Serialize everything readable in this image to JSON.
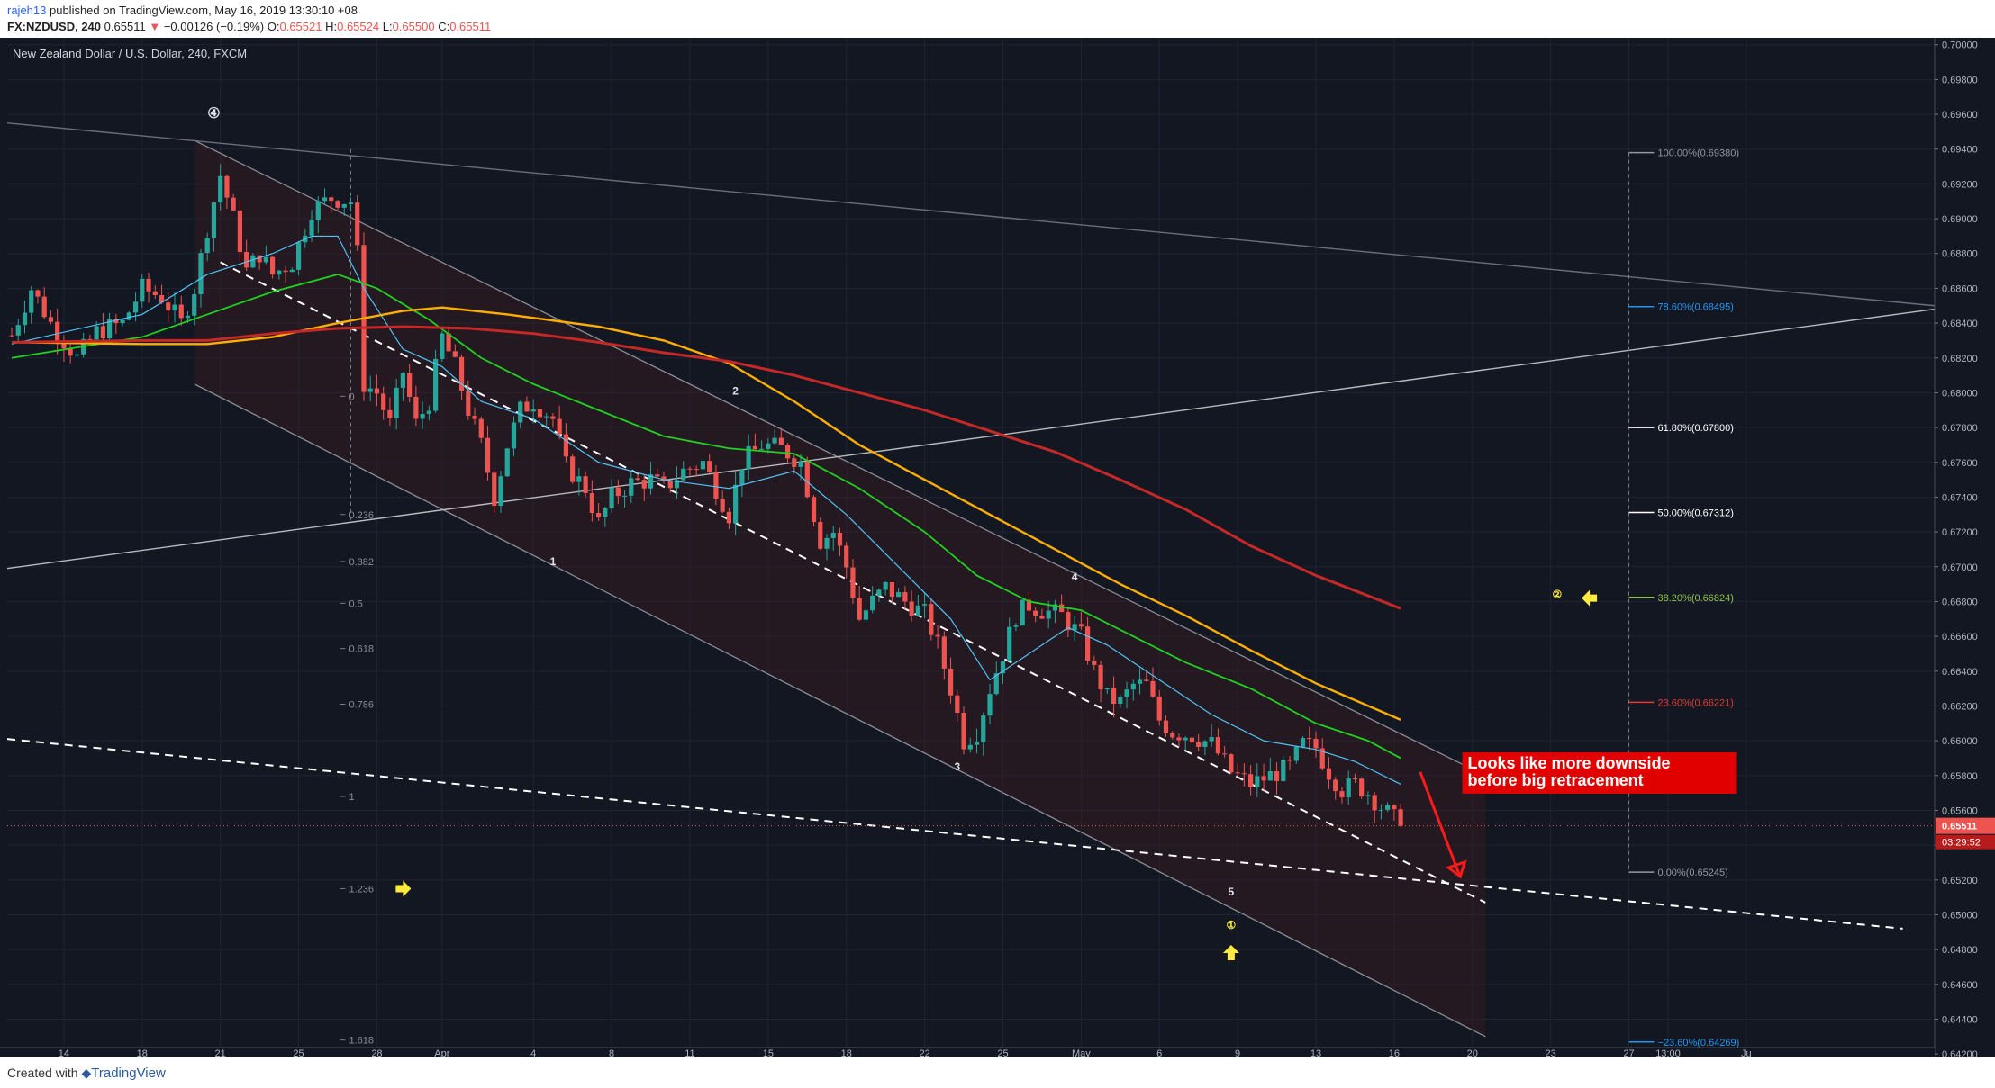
{
  "header": {
    "publisher": "rajeh13",
    "published_text": " published on TradingView.com, May 16, 2019 13:30:10 +08",
    "symbol_text": "FX:NZDUSD, 240",
    "price": "0.65511",
    "change_arrow": "▼",
    "change": "−0.00126 (−0.19%)",
    "o_label": "O:",
    "o": "0.65521",
    "h_label": "H:",
    "h": "0.65524",
    "l_label": "L:",
    "l": "0.65500",
    "c_label": "C:",
    "c": "0.65511"
  },
  "footer": {
    "created": "Created with",
    "brand": "TradingView"
  },
  "colors": {
    "background": "#131722",
    "up": "#26a69a",
    "down": "#ef5350",
    "ma_fast": "#4fc3f7",
    "ma_mid": "#1ed21e",
    "ma_orange": "#ffae00",
    "ma_red": "#c62828"
  },
  "chart_data": {
    "type": "candlestick",
    "title": "New Zealand Dollar / U.S. Dollar, 240, FXCM",
    "ylim": [
      0.6418,
      0.7004
    ],
    "y_ticks": [
      "0.70000",
      "0.69800",
      "0.69600",
      "0.69400",
      "0.69200",
      "0.69000",
      "0.68800",
      "0.68600",
      "0.68400",
      "0.68200",
      "0.68000",
      "0.67800",
      "0.67600",
      "0.67400",
      "0.67200",
      "0.67000",
      "0.66800",
      "0.66600",
      "0.66400",
      "0.66200",
      "0.66000",
      "0.65800",
      "0.65600",
      "0.65400",
      "0.65200",
      "0.65000",
      "0.64800",
      "0.64600",
      "0.64400",
      "0.64200"
    ],
    "x_ticks": [
      {
        "label": "14",
        "bar": 8
      },
      {
        "label": "18",
        "bar": 20
      },
      {
        "label": "21",
        "bar": 32
      },
      {
        "label": "25",
        "bar": 44
      },
      {
        "label": "28",
        "bar": 56
      },
      {
        "label": "Apr",
        "bar": 66
      },
      {
        "label": "4",
        "bar": 80
      },
      {
        "label": "8",
        "bar": 92
      },
      {
        "label": "11",
        "bar": 104
      },
      {
        "label": "15",
        "bar": 116
      },
      {
        "label": "18",
        "bar": 128
      },
      {
        "label": "22",
        "bar": 140
      },
      {
        "label": "25",
        "bar": 152
      },
      {
        "label": "May",
        "bar": 164
      },
      {
        "label": "6",
        "bar": 176
      },
      {
        "label": "9",
        "bar": 188
      },
      {
        "label": "13",
        "bar": 200
      },
      {
        "label": "16",
        "bar": 212
      },
      {
        "label": "20",
        "bar": 224
      },
      {
        "label": "23",
        "bar": 236
      },
      {
        "label": "27",
        "bar": 248
      },
      {
        "label": "13:00",
        "bar": 254
      },
      {
        "label": "Ju",
        "bar": 266
      }
    ],
    "close_path": [
      [
        0,
        0.6833
      ],
      [
        3,
        0.686
      ],
      [
        6,
        0.684
      ],
      [
        10,
        0.682
      ],
      [
        13,
        0.6835
      ],
      [
        17,
        0.684
      ],
      [
        20,
        0.686
      ],
      [
        23,
        0.6855
      ],
      [
        26,
        0.684
      ],
      [
        28,
        0.686
      ],
      [
        30,
        0.6895
      ],
      [
        32,
        0.6925
      ],
      [
        34,
        0.69
      ],
      [
        36,
        0.687
      ],
      [
        38,
        0.688
      ],
      [
        40,
        0.6868
      ],
      [
        43,
        0.6875
      ],
      [
        46,
        0.6905
      ],
      [
        49,
        0.6912
      ],
      [
        52,
        0.691
      ],
      [
        53,
        0.688
      ],
      [
        54,
        0.6805
      ],
      [
        56,
        0.68
      ],
      [
        58,
        0.6782
      ],
      [
        60,
        0.6812
      ],
      [
        62,
        0.6782
      ],
      [
        64,
        0.6795
      ],
      [
        66,
        0.6832
      ],
      [
        68,
        0.6815
      ],
      [
        70,
        0.679
      ],
      [
        72,
        0.677
      ],
      [
        74,
        0.674
      ],
      [
        76,
        0.677
      ],
      [
        78,
        0.679
      ],
      [
        80,
        0.6795
      ],
      [
        83,
        0.6785
      ],
      [
        85,
        0.6758
      ],
      [
        88,
        0.6745
      ],
      [
        90,
        0.6725
      ],
      [
        92,
        0.674
      ],
      [
        95,
        0.6748
      ],
      [
        98,
        0.675
      ],
      [
        100,
        0.6745
      ],
      [
        103,
        0.6755
      ],
      [
        106,
        0.676
      ],
      [
        108,
        0.6745
      ],
      [
        110,
        0.673
      ],
      [
        112,
        0.676
      ],
      [
        115,
        0.677
      ],
      [
        118,
        0.6768
      ],
      [
        121,
        0.676
      ],
      [
        124,
        0.6715
      ],
      [
        126,
        0.672
      ],
      [
        128,
        0.67
      ],
      [
        130,
        0.667
      ],
      [
        132,
        0.668
      ],
      [
        134,
        0.6688
      ],
      [
        137,
        0.668
      ],
      [
        140,
        0.6673
      ],
      [
        142,
        0.6655
      ],
      [
        144,
        0.663
      ],
      [
        146,
        0.66
      ],
      [
        148,
        0.6605
      ],
      [
        150,
        0.663
      ],
      [
        152,
        0.665
      ],
      [
        154,
        0.6672
      ],
      [
        156,
        0.6678
      ],
      [
        158,
        0.6675
      ],
      [
        161,
        0.6672
      ],
      [
        164,
        0.666
      ],
      [
        166,
        0.664
      ],
      [
        168,
        0.6625
      ],
      [
        170,
        0.6622
      ],
      [
        172,
        0.6632
      ],
      [
        174,
        0.6632
      ],
      [
        176,
        0.6612
      ],
      [
        178,
        0.6605
      ],
      [
        181,
        0.6603
      ],
      [
        184,
        0.6598
      ],
      [
        187,
        0.6582
      ],
      [
        190,
        0.6575
      ],
      [
        193,
        0.658
      ],
      [
        196,
        0.6585
      ],
      [
        198,
        0.6598
      ],
      [
        200,
        0.6596
      ],
      [
        202,
        0.6582
      ],
      [
        204,
        0.6572
      ],
      [
        206,
        0.6575
      ],
      [
        208,
        0.657
      ],
      [
        210,
        0.6562
      ],
      [
        212,
        0.6555
      ],
      [
        213,
        0.6551
      ]
    ],
    "moving_averages": [
      {
        "color": "ma_fast",
        "points": [
          [
            0,
            0.6828
          ],
          [
            20,
            0.6845
          ],
          [
            30,
            0.6868
          ],
          [
            40,
            0.688
          ],
          [
            46,
            0.689
          ],
          [
            50,
            0.689
          ],
          [
            54,
            0.686
          ],
          [
            60,
            0.6825
          ],
          [
            66,
            0.6815
          ],
          [
            72,
            0.6795
          ],
          [
            80,
            0.6785
          ],
          [
            90,
            0.676
          ],
          [
            100,
            0.675
          ],
          [
            110,
            0.6745
          ],
          [
            120,
            0.6755
          ],
          [
            128,
            0.673
          ],
          [
            136,
            0.67
          ],
          [
            144,
            0.667
          ],
          [
            150,
            0.6635
          ],
          [
            156,
            0.665
          ],
          [
            162,
            0.6665
          ],
          [
            168,
            0.6655
          ],
          [
            176,
            0.6635
          ],
          [
            184,
            0.6615
          ],
          [
            192,
            0.66
          ],
          [
            200,
            0.6595
          ],
          [
            206,
            0.6588
          ],
          [
            213,
            0.6575
          ]
        ]
      },
      {
        "color": "ma_mid",
        "points": [
          [
            0,
            0.682
          ],
          [
            20,
            0.6832
          ],
          [
            30,
            0.6845
          ],
          [
            40,
            0.6858
          ],
          [
            50,
            0.6868
          ],
          [
            56,
            0.686
          ],
          [
            64,
            0.6842
          ],
          [
            72,
            0.682
          ],
          [
            80,
            0.6805
          ],
          [
            90,
            0.679
          ],
          [
            100,
            0.6775
          ],
          [
            110,
            0.6768
          ],
          [
            120,
            0.6765
          ],
          [
            130,
            0.6745
          ],
          [
            140,
            0.672
          ],
          [
            148,
            0.6695
          ],
          [
            156,
            0.668
          ],
          [
            164,
            0.6675
          ],
          [
            172,
            0.666
          ],
          [
            180,
            0.6645
          ],
          [
            190,
            0.663
          ],
          [
            200,
            0.661
          ],
          [
            208,
            0.66
          ],
          [
            213,
            0.659
          ]
        ]
      },
      {
        "color": "ma_orange",
        "points": [
          [
            0,
            0.6829
          ],
          [
            20,
            0.6828
          ],
          [
            30,
            0.6828
          ],
          [
            40,
            0.6832
          ],
          [
            50,
            0.684
          ],
          [
            60,
            0.6847
          ],
          [
            66,
            0.6849
          ],
          [
            76,
            0.6845
          ],
          [
            90,
            0.6838
          ],
          [
            100,
            0.683
          ],
          [
            110,
            0.6817
          ],
          [
            120,
            0.6795
          ],
          [
            130,
            0.677
          ],
          [
            140,
            0.675
          ],
          [
            150,
            0.673
          ],
          [
            160,
            0.671
          ],
          [
            170,
            0.669
          ],
          [
            180,
            0.6672
          ],
          [
            190,
            0.6652
          ],
          [
            200,
            0.6633
          ],
          [
            213,
            0.6612
          ]
        ]
      },
      {
        "color": "ma_red",
        "points": [
          [
            0,
            0.6829
          ],
          [
            20,
            0.683
          ],
          [
            30,
            0.683
          ],
          [
            40,
            0.6834
          ],
          [
            50,
            0.6837
          ],
          [
            60,
            0.6838
          ],
          [
            70,
            0.6837
          ],
          [
            80,
            0.6834
          ],
          [
            90,
            0.6829
          ],
          [
            100,
            0.6823
          ],
          [
            110,
            0.6818
          ],
          [
            120,
            0.681
          ],
          [
            130,
            0.68
          ],
          [
            140,
            0.679
          ],
          [
            150,
            0.6778
          ],
          [
            160,
            0.6766
          ],
          [
            170,
            0.675
          ],
          [
            180,
            0.6733
          ],
          [
            190,
            0.6712
          ],
          [
            200,
            0.6695
          ],
          [
            213,
            0.6676
          ]
        ]
      }
    ],
    "wave_labels": [
      {
        "text": "④",
        "bar": 31,
        "price": 0.6958
      },
      {
        "text": "1",
        "bar": 83,
        "price": 0.6701
      },
      {
        "text": "2",
        "bar": 111,
        "price": 0.6799
      },
      {
        "text": "3",
        "bar": 145,
        "price": 0.6583
      },
      {
        "text": "4",
        "bar": 163,
        "price": 0.6692
      },
      {
        "text": "5",
        "bar": 187,
        "price": 0.6511
      },
      {
        "text": "①",
        "bar": 187,
        "price": 0.6492
      },
      {
        "text": "②",
        "bar": 237,
        "price": 0.6682
      }
    ],
    "arrows": [
      {
        "dir": "right",
        "bar": 60,
        "price": 0.6515
      },
      {
        "dir": "left",
        "bar": 242,
        "price": 0.6682
      },
      {
        "dir": "up",
        "bar": 187,
        "price": 0.6478
      }
    ],
    "fib_extension": {
      "bar": 52,
      "levels": [
        {
          "text": "0",
          "price": 0.6798
        },
        {
          "text": "0.236",
          "price": 0.673
        },
        {
          "text": "0.382",
          "price": 0.6703
        },
        {
          "text": "0.5",
          "price": 0.6679
        },
        {
          "text": "0.618",
          "price": 0.6653
        },
        {
          "text": "0.786",
          "price": 0.6621
        },
        {
          "text": "1",
          "price": 0.6568
        },
        {
          "text": "1.236",
          "price": 0.6515
        },
        {
          "text": "1.618",
          "price": 0.6428
        }
      ]
    },
    "fib_retracement": {
      "bar": 248,
      "levels": [
        {
          "text": "100.00%(0.69380)",
          "price": 0.6938,
          "color": "#9598a1"
        },
        {
          "text": "78.60%(0.68495)",
          "price": 0.68495,
          "color": "#2196f3"
        },
        {
          "text": "61.80%(0.67800)",
          "price": 0.678,
          "color": "#ffffff"
        },
        {
          "text": "50.00%(0.67312)",
          "price": 0.67312,
          "color": "#ffffff"
        },
        {
          "text": "38.20%(0.66824)",
          "price": 0.66824,
          "color": "#8bc34a"
        },
        {
          "text": "23.60%(0.66221)",
          "price": 0.66221,
          "color": "#e53935"
        },
        {
          "text": "0.00%(0.65245)",
          "price": 0.65245,
          "color": "#9598a1"
        },
        {
          "text": "−23.60%(0.64269)",
          "price": 0.64269,
          "color": "#2196f3"
        }
      ]
    },
    "annotation": {
      "lines": [
        "Looks like more downside",
        "before big retracement"
      ],
      "bar": 223,
      "price": 0.6583
    },
    "last_price": {
      "price": "0.65511",
      "time": "03:29:52"
    }
  }
}
